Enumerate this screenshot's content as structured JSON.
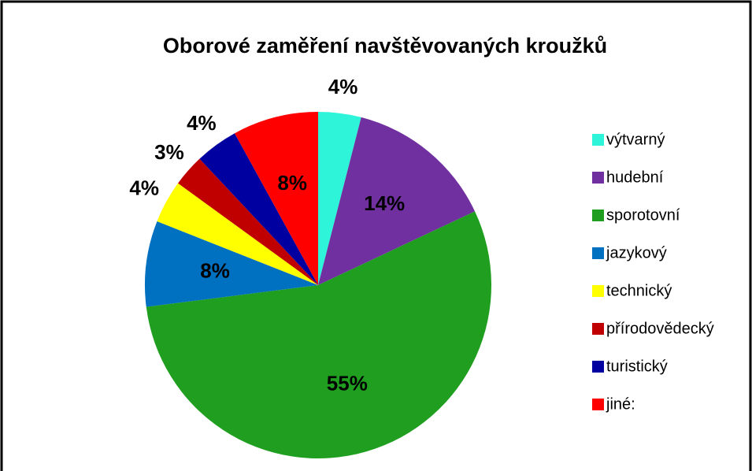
{
  "chart_data": {
    "type": "pie",
    "title": "Oborové zaměření navštěvovaných kroužků",
    "categories": [
      "výtvarný",
      "hudební",
      "sporotovní",
      "jazykový",
      "technický",
      "přírodovědecký",
      "turistický",
      "jiné:"
    ],
    "values": [
      4,
      14,
      55,
      8,
      4,
      3,
      4,
      8
    ],
    "value_labels": [
      "4%",
      "14%",
      "55%",
      "8%",
      "4%",
      "3%",
      "4%",
      "8%"
    ],
    "colors": [
      "#2ef5d9",
      "#7030a0",
      "#1f9e1f",
      "#0070c0",
      "#ffff00",
      "#c00000",
      "#0000a0",
      "#ff0000"
    ],
    "legend": "right"
  }
}
